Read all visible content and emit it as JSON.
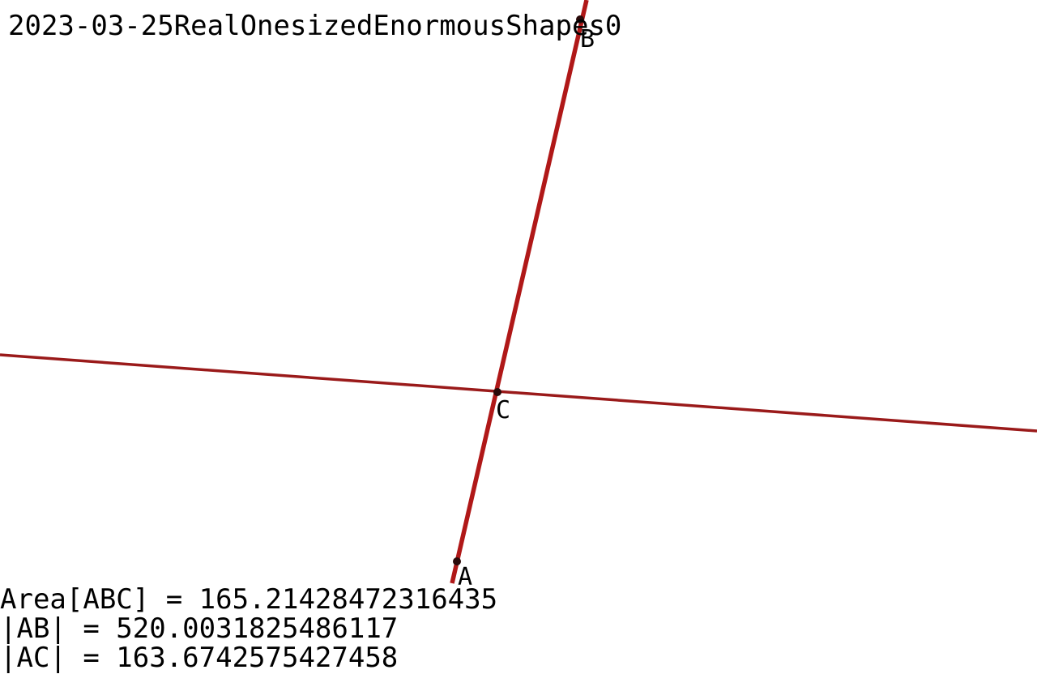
{
  "title": "2023-03-25RealOnesizedEnormousShapes0",
  "colors": {
    "line": "#b01818",
    "thin_line": "#9a1a1a",
    "point": "#2a0a0a",
    "text": "#000000",
    "background": "#ffffff"
  },
  "points": {
    "A": {
      "label": "A"
    },
    "B": {
      "label": "B"
    },
    "C": {
      "label": "C"
    }
  },
  "measurements": [
    "Area[ABC] = 165.21428472316435",
    "|AB| = 520.0031825486117",
    "|AC| = 163.6742575427458"
  ]
}
